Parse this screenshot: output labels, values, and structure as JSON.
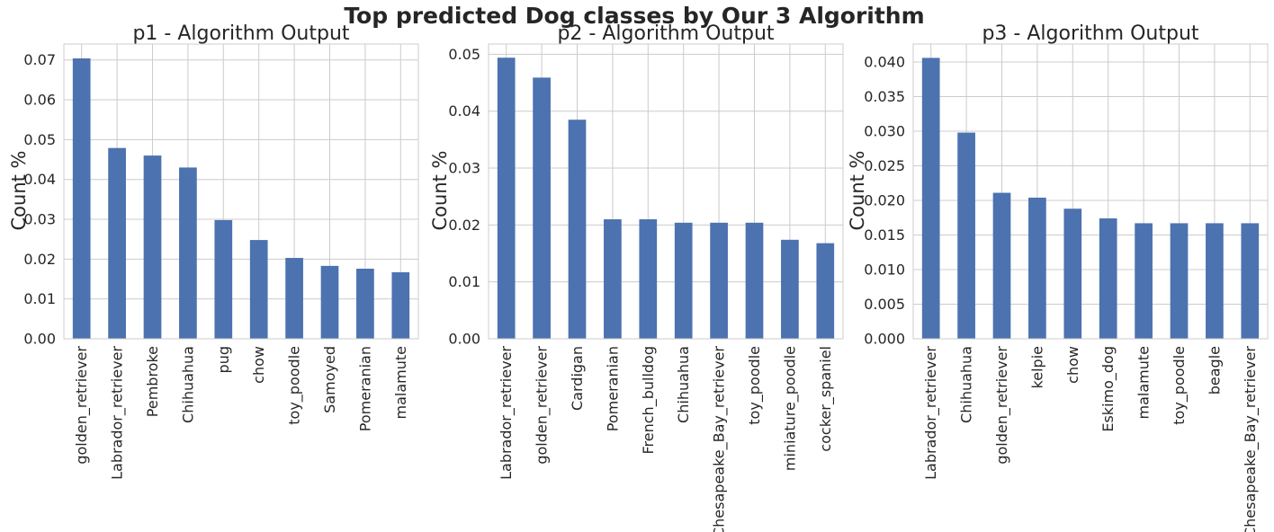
{
  "figure": {
    "title": "Top predicted Dog classes by Our 3 Algorithm",
    "colors": {
      "bar": "#4c72b0",
      "grid": "#cccccc",
      "text": "#262626",
      "background": "#ffffff"
    }
  },
  "chart_data": [
    {
      "type": "bar",
      "title": "p1 - Algorithm Output",
      "xlabel": "",
      "ylabel": "Count %",
      "ylim": [
        0,
        0.074
      ],
      "yticks": [
        0.0,
        0.01,
        0.02,
        0.03,
        0.04,
        0.05,
        0.06,
        0.07
      ],
      "ytick_labels": [
        "0.00",
        "0.01",
        "0.02",
        "0.03",
        "0.04",
        "0.05",
        "0.06",
        "0.07"
      ],
      "grid": true,
      "categories": [
        "golden_retriever",
        "Labrador_retriever",
        "Pembroke",
        "Chihuahua",
        "pug",
        "chow",
        "toy_poodle",
        "Samoyed",
        "Pomeranian",
        "malamute"
      ],
      "values": [
        0.0704,
        0.0479,
        0.046,
        0.043,
        0.0298,
        0.0248,
        0.0203,
        0.0183,
        0.0176,
        0.0167
      ]
    },
    {
      "type": "bar",
      "title": "p2 - Algorithm Output",
      "xlabel": "",
      "ylabel": "Count %",
      "ylim": [
        0,
        0.0518
      ],
      "yticks": [
        0.0,
        0.01,
        0.02,
        0.03,
        0.04,
        0.05
      ],
      "ytick_labels": [
        "0.00",
        "0.01",
        "0.02",
        "0.03",
        "0.04",
        "0.05"
      ],
      "grid": true,
      "categories": [
        "Labrador_retriever",
        "golden_retriever",
        "Cardigan",
        "Pomeranian",
        "French_bulldog",
        "Chihuahua",
        "Chesapeake_Bay_retriever",
        "toy_poodle",
        "miniature_poodle",
        "cocker_spaniel"
      ],
      "values": [
        0.0494,
        0.0459,
        0.0385,
        0.021,
        0.021,
        0.0204,
        0.0204,
        0.0204,
        0.0174,
        0.0168
      ]
    },
    {
      "type": "bar",
      "title": "p3 - Algorithm Output",
      "xlabel": "",
      "ylabel": "Count %",
      "ylim": [
        0,
        0.0426
      ],
      "yticks": [
        0.0,
        0.005,
        0.01,
        0.015,
        0.02,
        0.025,
        0.03,
        0.035,
        0.04
      ],
      "ytick_labels": [
        "0.000",
        "0.005",
        "0.010",
        "0.015",
        "0.020",
        "0.025",
        "0.030",
        "0.035",
        "0.040"
      ],
      "grid": true,
      "categories": [
        "Labrador_retriever",
        "Chihuahua",
        "golden_retriever",
        "kelpie",
        "chow",
        "Eskimo_dog",
        "malamute",
        "toy_poodle",
        "beagle",
        "Chesapeake_Bay_retriever"
      ],
      "values": [
        0.0406,
        0.0298,
        0.0211,
        0.0204,
        0.0188,
        0.0174,
        0.0167,
        0.0167,
        0.0167,
        0.0167
      ]
    }
  ]
}
